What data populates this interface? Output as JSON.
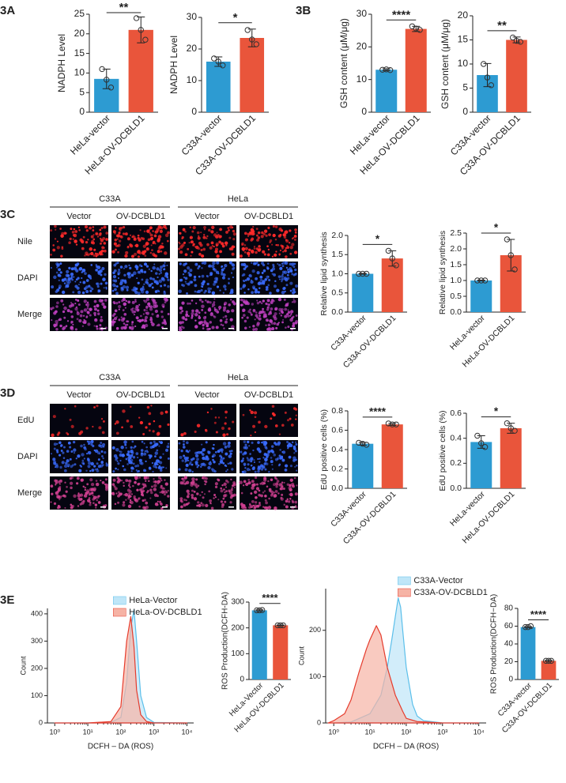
{
  "chart_data": [
    {
      "type": "bar",
      "ylabel": "NADPH Level",
      "categories": [
        "HeLa-vector",
        "HeLa-OV-DCBLD1"
      ],
      "values": [
        8.5,
        21
      ],
      "errors": [
        2.5,
        3.3
      ],
      "points": [
        [
          11,
          8.3,
          6.3
        ],
        [
          24,
          21,
          18.5
        ]
      ],
      "colors": [
        "#2d9bd2",
        "#e9553b"
      ],
      "ylim": [
        0,
        25
      ],
      "yticks": [
        0,
        5,
        10,
        15,
        20,
        25
      ],
      "significance": "**"
    },
    {
      "type": "bar",
      "ylabel": "NADPH Level",
      "categories": [
        "C33A-vector",
        "C33A-OV-DCBLD1"
      ],
      "values": [
        16,
        23.5
      ],
      "errors": [
        1.5,
        2.8
      ],
      "points": [
        [
          17,
          16,
          14.8
        ],
        [
          26,
          23,
          21.5
        ]
      ],
      "colors": [
        "#2d9bd2",
        "#e9553b"
      ],
      "ylim": [
        0,
        30
      ],
      "yticks": [
        0,
        10,
        20,
        30
      ],
      "significance": "*"
    },
    {
      "type": "bar",
      "ylabel": "GSH content (μM/μg)",
      "categories": [
        "HeLa-vector",
        "HeLa-OV-DCBLD1"
      ],
      "values": [
        13,
        25.5
      ],
      "errors": [
        0.3,
        0.8
      ],
      "points": [
        [
          13,
          13.1,
          12.9
        ],
        [
          26.3,
          25.6,
          25.2
        ]
      ],
      "colors": [
        "#2d9bd2",
        "#e9553b"
      ],
      "ylim": [
        0,
        30
      ],
      "yticks": [
        0,
        10,
        20,
        30
      ],
      "significance": "****"
    },
    {
      "type": "bar",
      "ylabel": "GSH content (μM/μg)",
      "categories": [
        "C33A-vector",
        "C33A-OV-DCBLD1"
      ],
      "values": [
        7.7,
        15
      ],
      "errors": [
        2.4,
        0.6
      ],
      "points": [
        [
          10,
          7.2,
          5.6
        ],
        [
          15.5,
          14.8,
          14.6
        ]
      ],
      "colors": [
        "#2d9bd2",
        "#e9553b"
      ],
      "ylim": [
        0,
        20
      ],
      "yticks": [
        0,
        5,
        10,
        15,
        20
      ],
      "significance": "**"
    },
    {
      "type": "bar",
      "ylabel": "Relative lipid synthesis",
      "categories": [
        "C33A-vector",
        "C33A-OV-DCBLD1"
      ],
      "values": [
        1.0,
        1.4
      ],
      "errors": [
        0.01,
        0.2
      ],
      "points": [
        [
          1,
          1,
          1
        ],
        [
          1.6,
          1.4,
          1.22
        ]
      ],
      "colors": [
        "#2d9bd2",
        "#e9553b"
      ],
      "ylim": [
        0,
        2
      ],
      "yticks": [
        {
          "value": 0,
          "label": "0.0"
        },
        0.5,
        {
          "value": 1,
          "label": "1.0"
        },
        1.5,
        {
          "value": 2,
          "label": "2.0"
        }
      ],
      "significance": "*"
    },
    {
      "type": "bar",
      "ylabel": "Relative lipid synthesis",
      "categories": [
        "HeLa-vector",
        "HeLa-OV-DCBLD1"
      ],
      "values": [
        1.0,
        1.8
      ],
      "errors": [
        0.01,
        0.5
      ],
      "points": [
        [
          1,
          1,
          1
        ],
        [
          2.3,
          1.8,
          1.35
        ]
      ],
      "colors": [
        "#2d9bd2",
        "#e9553b"
      ],
      "ylim": [
        0,
        2.5
      ],
      "yticks": [
        {
          "value": 0,
          "label": "0.0"
        },
        0.5,
        {
          "value": 1,
          "label": "1.0"
        },
        1.5,
        {
          "value": 2,
          "label": "2.0"
        },
        2.5
      ],
      "significance": "*"
    },
    {
      "type": "bar",
      "ylabel": "EdU positive cells (%)",
      "categories": [
        "C33A-vector",
        "C33A-OV-DCBLD1"
      ],
      "values": [
        0.46,
        0.66
      ],
      "errors": [
        0.015,
        0.01
      ],
      "points": [
        [
          0.47,
          0.46,
          0.45
        ],
        [
          0.67,
          0.66,
          0.66
        ]
      ],
      "colors": [
        "#2d9bd2",
        "#e9553b"
      ],
      "ylim": [
        0,
        0.8
      ],
      "yticks": [
        {
          "value": 0,
          "label": "0.0"
        },
        0.2,
        0.4,
        0.6,
        0.8
      ],
      "significance": "****"
    },
    {
      "type": "bar",
      "ylabel": "EdU positive cells (%)",
      "categories": [
        "HeLa-vector",
        "HeLa-OV-DCBLD1"
      ],
      "values": [
        0.37,
        0.48
      ],
      "errors": [
        0.05,
        0.04
      ],
      "points": [
        [
          0.42,
          0.36,
          0.33
        ],
        [
          0.52,
          0.48,
          0.46
        ]
      ],
      "colors": [
        "#2d9bd2",
        "#e9553b"
      ],
      "ylim": [
        0,
        0.6
      ],
      "yticks": [
        {
          "value": 0,
          "label": "0.0"
        },
        0.2,
        0.4,
        0.6
      ],
      "significance": "*"
    },
    {
      "type": "line",
      "xscale": "log",
      "fill": true,
      "legend": "upper right",
      "xlabel": "DCFH – DA (ROS)",
      "ylabel": "Count",
      "series": [
        {
          "name": "HeLa-Vector",
          "color": "#5bbfea",
          "fill_color": "#bfe6f8",
          "x": [
            1,
            10,
            50,
            100,
            150,
            200,
            250,
            300,
            400,
            600,
            1000,
            10000
          ],
          "values": [
            0,
            0,
            2,
            20,
            150,
            350,
            415,
            300,
            100,
            20,
            2,
            0
          ]
        },
        {
          "name": "HeLa-OV-DCBLD1",
          "color": "#e53b2c",
          "fill_color": "#f6b3a5",
          "x": [
            1,
            10,
            50,
            100,
            150,
            200,
            250,
            300,
            400,
            600,
            1000,
            10000
          ],
          "values": [
            0,
            0,
            5,
            60,
            300,
            390,
            280,
            120,
            30,
            5,
            0,
            0
          ]
        }
      ],
      "xlim": [
        0.6,
        16000
      ],
      "xticks": [
        {
          "value": 1,
          "label": "10⁰"
        },
        {
          "value": 10,
          "label": "10¹"
        },
        {
          "value": 100,
          "label": "10²"
        },
        {
          "value": 1000,
          "label": "10³"
        },
        {
          "value": 10000,
          "label": "10⁴"
        }
      ],
      "ylim": [
        0,
        420
      ],
      "yticks": [
        0,
        100,
        200,
        300,
        400
      ]
    },
    {
      "type": "bar",
      "ylabel": "ROS Production(DCFH-DA)",
      "categories": [
        "HeLa-Vector",
        "HeLa-OV-DCBLD1"
      ],
      "values": [
        268,
        210
      ],
      "errors": [
        2,
        1
      ],
      "points": [
        [
          268,
          268,
          269
        ],
        [
          210,
          210,
          210
        ]
      ],
      "colors": [
        "#2d9bd2",
        "#e9553b"
      ],
      "ylim": [
        0,
        300
      ],
      "yticks": [
        0,
        100,
        200,
        300
      ],
      "significance": "****"
    },
    {
      "type": "line",
      "xscale": "log",
      "fill": true,
      "legend": "upper right",
      "xlabel": "DCFH – DA (ROS)",
      "ylabel": "Count",
      "series": [
        {
          "name": "C33A-Vector",
          "color": "#5bbfea",
          "fill_color": "#bfe6f8",
          "x": [
            1,
            3,
            10,
            20,
            30,
            40,
            50,
            60,
            70,
            80,
            100,
            150,
            200,
            300,
            1000,
            10000
          ],
          "values": [
            0,
            2,
            20,
            60,
            120,
            180,
            230,
            270,
            250,
            200,
            120,
            40,
            15,
            5,
            0,
            0
          ]
        },
        {
          "name": "C33A-OV-DCBLD1",
          "color": "#e53b2c",
          "fill_color": "#f6b3a5",
          "x": [
            0.7,
            1,
            2,
            3,
            5,
            8,
            10,
            15,
            20,
            30,
            50,
            80,
            100,
            200,
            1000,
            10000
          ],
          "values": [
            0,
            5,
            20,
            50,
            110,
            160,
            180,
            210,
            190,
            120,
            60,
            25,
            10,
            3,
            0,
            0
          ]
        }
      ],
      "xlim": [
        0.6,
        16000
      ],
      "xticks": [
        {
          "value": 1,
          "label": "10⁰"
        },
        {
          "value": 10,
          "label": "10¹"
        },
        {
          "value": 100,
          "label": "10²"
        },
        {
          "value": 1000,
          "label": "10³"
        },
        {
          "value": 10000,
          "label": "10⁴"
        }
      ],
      "ylim": [
        0,
        290
      ],
      "yticks": [
        0,
        100,
        200
      ]
    },
    {
      "type": "bar",
      "ylabel": "ROS Production(DCFH−DA)",
      "categories": [
        "C33A-vector",
        "C33A-OV-DCBLD1"
      ],
      "values": [
        59,
        21
      ],
      "errors": [
        0.5,
        0.3
      ],
      "points": [
        [
          59,
          59,
          60
        ],
        [
          21,
          21,
          21
        ]
      ],
      "colors": [
        "#2d9bd2",
        "#e9553b"
      ],
      "ylim": [
        0,
        80
      ],
      "yticks": [
        0,
        20,
        40,
        60,
        80
      ],
      "significance": "****"
    }
  ],
  "figure": {
    "panels": [
      "3A",
      "3B",
      "3C",
      "3D",
      "3E"
    ],
    "image_grids": [
      {
        "groups": [
          {
            "name": "C33A",
            "columns": [
              "Vector",
              "OV-DCBLD1"
            ]
          },
          {
            "name": "HeLa",
            "columns": [
              "Vector",
              "OV-DCBLD1"
            ]
          }
        ],
        "rows": [
          "Nile",
          "DAPI",
          "Merge"
        ]
      },
      {
        "groups": [
          {
            "name": "C33A",
            "columns": [
              "Vector",
              "OV-DCBLD1"
            ]
          },
          {
            "name": "HeLa",
            "columns": [
              "Vector",
              "OV-DCBLD1"
            ]
          }
        ],
        "rows": [
          "EdU",
          "DAPI",
          "Merge"
        ]
      }
    ]
  }
}
